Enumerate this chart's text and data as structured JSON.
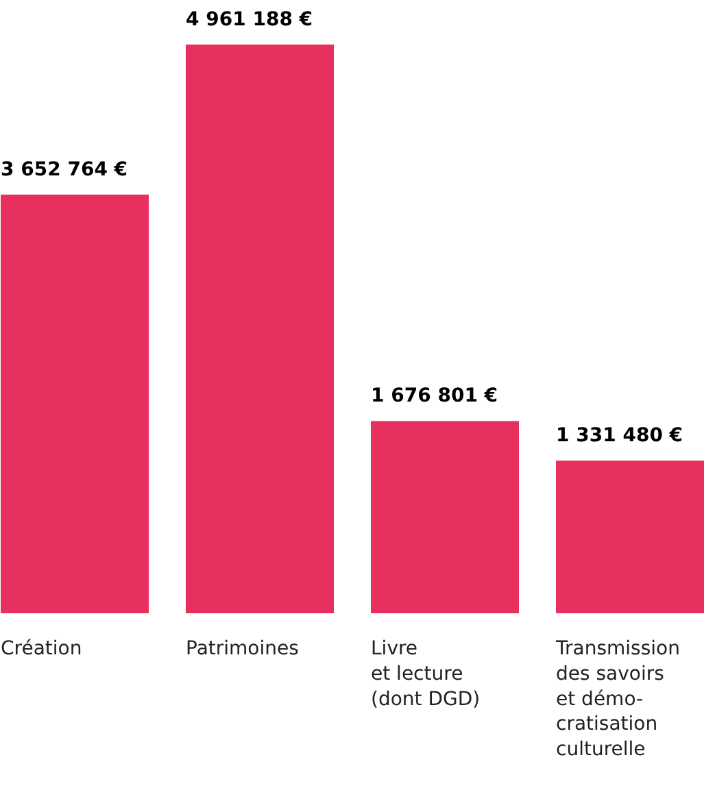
{
  "chart_data": {
    "type": "bar",
    "categories": [
      "Création",
      "Patrimoines",
      "Livre\net lecture\n(dont DGD)",
      "Transmission\ndes savoirs\net démo-\ncratisation\nculturelle"
    ],
    "values": [
      3652764,
      4961188,
      1676801,
      1331480
    ],
    "value_labels": [
      "3 652 764 €",
      "4 961 188 €",
      "1 676 801 €",
      "1 331 480 €"
    ],
    "color": "#e8305e",
    "grid": false
  }
}
